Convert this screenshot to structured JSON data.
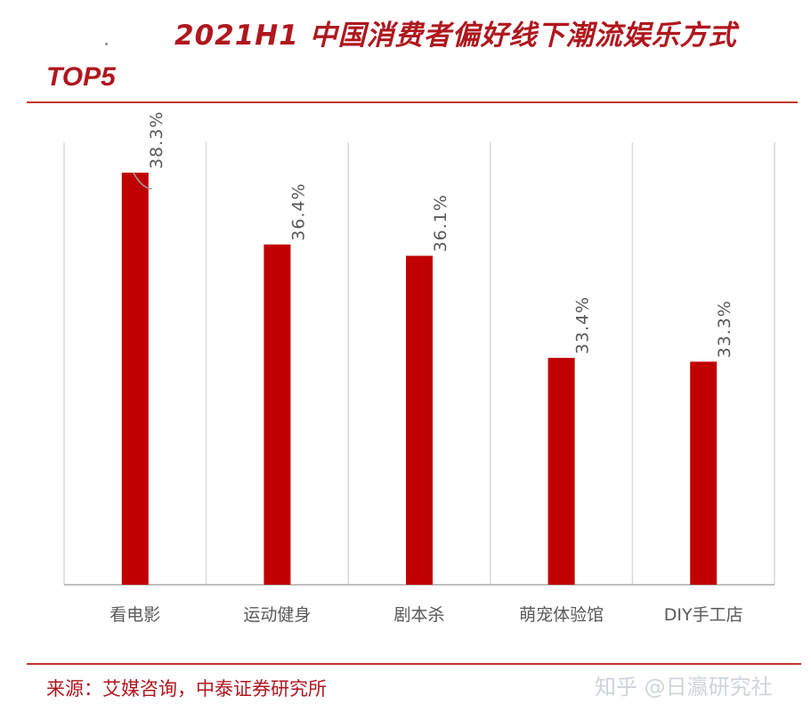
{
  "header": {
    "title": "2021H1  中国消费者偏好线下潮流娱乐方式",
    "subtitle": "TOP5"
  },
  "footer": {
    "source": "来源：艾媒咨询，中泰证券研究所",
    "watermark": "知乎 @日瀛研究社"
  },
  "colors": {
    "bar": "#c00000",
    "title": "#b0171f",
    "gridline": "#d9d9d9",
    "axis": "#bfbfbf",
    "label": "#595959"
  },
  "chart_data": {
    "type": "bar",
    "categories": [
      "看电影",
      "运动健身",
      "剧本杀",
      "萌宠体验馆",
      "DIY手工店"
    ],
    "values": [
      38.3,
      36.4,
      36.1,
      33.4,
      33.3
    ],
    "data_labels": [
      "38.3%",
      "36.4%",
      "36.1%",
      "33.4%",
      "33.3%"
    ],
    "title": "2021H1  中国消费者偏好线下潮流娱乐方式",
    "subtitle": "TOP5",
    "xlabel": "",
    "ylabel": "",
    "ylim": [
      27.4,
      39.1
    ],
    "grid": true,
    "legend": "none"
  }
}
